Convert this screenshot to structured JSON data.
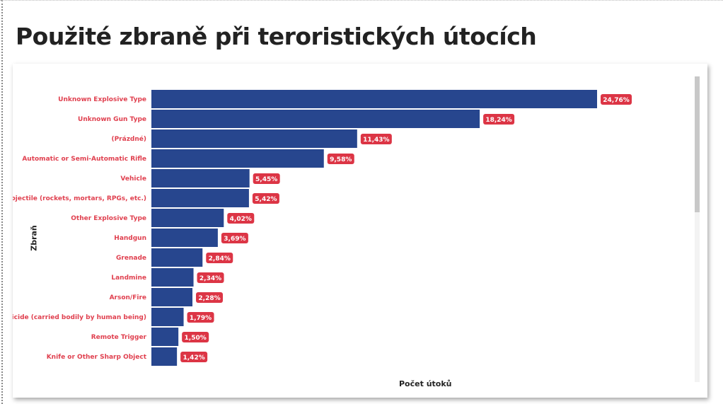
{
  "title": "Použité zbraně při teroristických útocích",
  "chart_data": {
    "type": "bar",
    "orientation": "horizontal",
    "title": "Použité zbraně při teroristických útocích",
    "xlabel": "Počet útoků",
    "ylabel": "Zbraň",
    "categories": [
      "Unknown Explosive Type",
      "Unknown Gun Type",
      "(Prázdné)",
      "Automatic or Semi-Automatic Rifle",
      "Vehicle",
      "Projectile (rockets, mortars, RPGs, etc.)",
      "Other Explosive Type",
      "Handgun",
      "Grenade",
      "Landmine",
      "Arson/Fire",
      "Suicide (carried bodily by human being)",
      "Remote Trigger",
      "Knife or Other Sharp Object"
    ],
    "values": [
      24.76,
      18.24,
      11.43,
      9.58,
      5.45,
      5.42,
      4.02,
      3.69,
      2.84,
      2.34,
      2.28,
      1.79,
      1.5,
      1.42
    ],
    "data_labels": [
      "24,76%",
      "18,24%",
      "11,43%",
      "9,58%",
      "5,45%",
      "5,42%",
      "4,02%",
      "3,69%",
      "2,84%",
      "2,34%",
      "2,28%",
      "1,79%",
      "1,50%",
      "1,42%"
    ],
    "unit": "%",
    "grid": false,
    "colors": {
      "bar": "#27468E",
      "category_text": "#E0404F",
      "label_bg": "#DC3545"
    }
  }
}
